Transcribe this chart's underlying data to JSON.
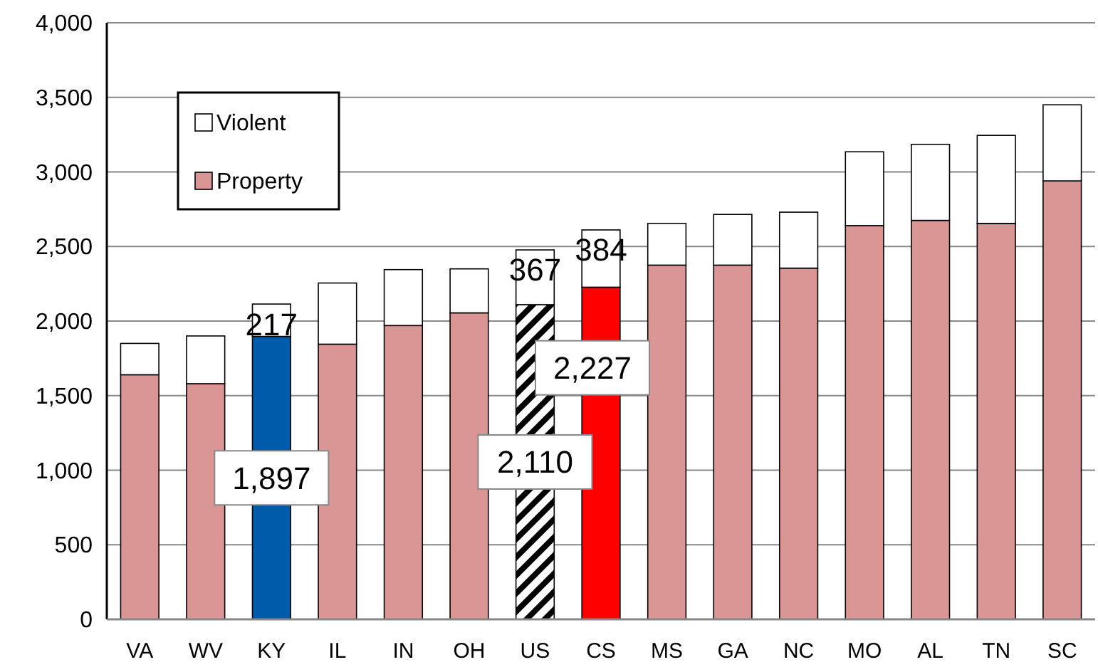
{
  "chart_data": {
    "type": "bar",
    "stacked": true,
    "categories": [
      "VA",
      "WV",
      "KY",
      "IL",
      "IN",
      "OH",
      "US",
      "CS",
      "MS",
      "GA",
      "NC",
      "MO",
      "AL",
      "TN",
      "SC"
    ],
    "series": [
      {
        "name": "Property",
        "color": "#d99694",
        "colors": [
          "#d99694",
          "#d99694",
          "#005bab",
          "#d99694",
          "#d99694",
          "#d99694",
          "#000000",
          "#ff0000",
          "#d99694",
          "#d99694",
          "#d99694",
          "#d99694",
          "#d99694",
          "#d99694",
          "#d99694"
        ],
        "values": [
          1640,
          1580,
          1897,
          1845,
          1970,
          2055,
          2110,
          2227,
          2375,
          2375,
          2355,
          2640,
          2675,
          2655,
          2940
        ],
        "value_labels": [
          null,
          null,
          "1,897",
          null,
          null,
          null,
          "2,110",
          "2,227",
          null,
          null,
          null,
          null,
          null,
          null,
          null
        ]
      },
      {
        "name": "Violent",
        "color": "#ffffff",
        "values": [
          210,
          320,
          217,
          410,
          375,
          295,
          367,
          384,
          280,
          340,
          375,
          495,
          510,
          590,
          510
        ],
        "value_labels": [
          null,
          null,
          "217",
          null,
          null,
          null,
          "367",
          "384",
          null,
          null,
          null,
          null,
          null,
          null,
          null
        ]
      }
    ],
    "ylim": [
      0,
      4000
    ],
    "yticks": [
      {
        "value": 0,
        "label": "0"
      },
      {
        "value": 500,
        "label": "500"
      },
      {
        "value": 1000,
        "label": "1,000"
      },
      {
        "value": 1500,
        "label": "1,500"
      },
      {
        "value": 2000,
        "label": "2,000"
      },
      {
        "value": 2500,
        "label": "2,500"
      },
      {
        "value": 3000,
        "label": "3,000"
      },
      {
        "value": 3500,
        "label": "3,500"
      },
      {
        "value": 4000,
        "label": "4,000"
      }
    ],
    "grid": "y",
    "legend": "top left"
  }
}
